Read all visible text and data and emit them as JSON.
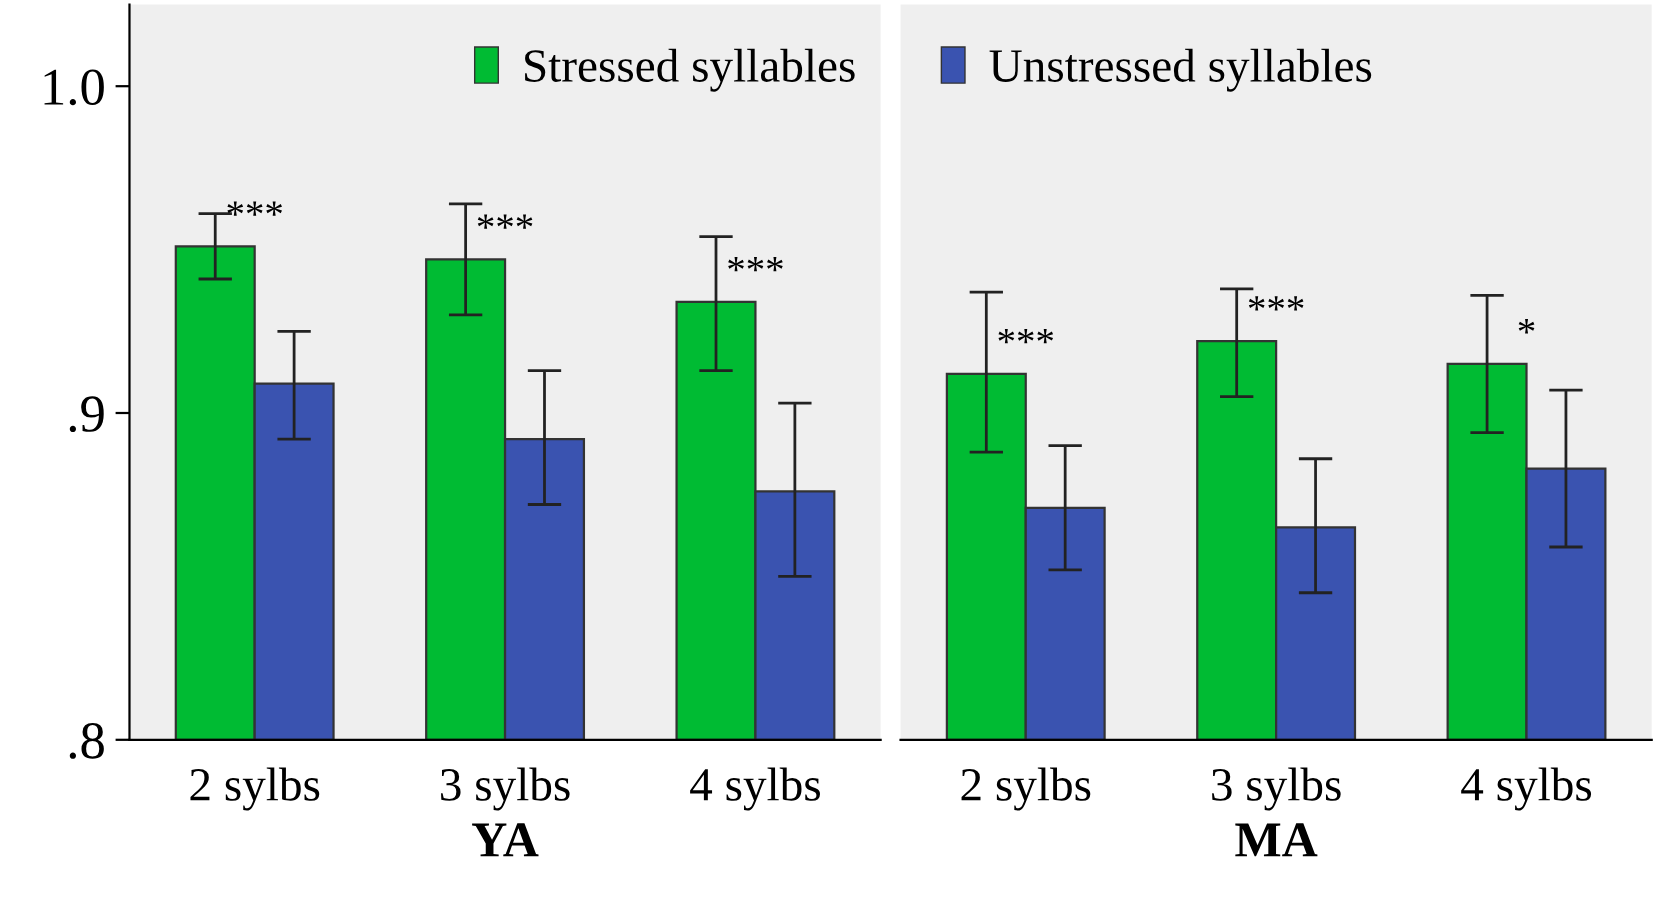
{
  "chart_data": [
    {
      "type": "bar",
      "categories": [
        "2 sylbs",
        "3 sylbs",
        "4 sylbs"
      ],
      "xlabel": "YA",
      "ylim": [
        0.8,
        1.025
      ],
      "yticks": [
        {
          "value": 0.8,
          "label": ".8"
        },
        {
          "value": 0.9,
          "label": ".9"
        },
        {
          "value": 1.0,
          "label": "1.0"
        }
      ],
      "legend": "top",
      "grid": false,
      "series": [
        {
          "name": "Stressed syllables",
          "color": "#00bb33",
          "values": [
            0.951,
            0.947,
            0.934
          ],
          "errors": [
            [
              0.941,
              0.961
            ],
            [
              0.93,
              0.964
            ],
            [
              0.913,
              0.954
            ]
          ]
        },
        {
          "name": "Unstressed syllables",
          "color": "#3a53b0",
          "values": [
            0.909,
            0.892,
            0.876
          ],
          "errors": [
            [
              0.892,
              0.925
            ],
            [
              0.872,
              0.913
            ],
            [
              0.85,
              0.903
            ]
          ]
        }
      ],
      "annotations": [
        "***",
        "***",
        "***"
      ]
    },
    {
      "type": "bar",
      "categories": [
        "2 sylbs",
        "3 sylbs",
        "4 sylbs"
      ],
      "xlabel": "MA",
      "ylim": [
        0.8,
        1.025
      ],
      "tick_labels": "x",
      "grid": false,
      "series": [
        {
          "color": "#00bb33",
          "values": [
            0.912,
            0.922,
            0.915
          ],
          "errors": [
            [
              0.888,
              0.937
            ],
            [
              0.905,
              0.938
            ],
            [
              0.894,
              0.936
            ]
          ]
        },
        {
          "color": "#3a53b0",
          "values": [
            0.871,
            0.865,
            0.883
          ],
          "errors": [
            [
              0.852,
              0.89
            ],
            [
              0.845,
              0.886
            ],
            [
              0.859,
              0.907
            ]
          ]
        }
      ],
      "annotations": [
        "***",
        "***",
        "*"
      ]
    }
  ]
}
